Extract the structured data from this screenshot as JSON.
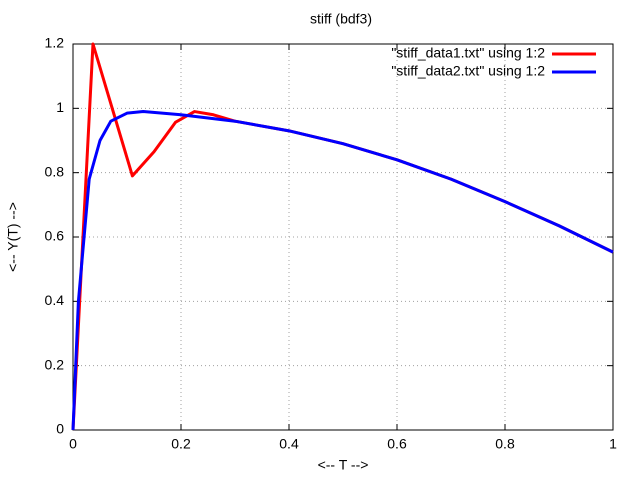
{
  "chart_data": {
    "type": "line",
    "title": "stiff (bdf3)",
    "x_label": "<-- T -->",
    "y_label": "<-- Y(T) -->",
    "series": [
      {
        "name": "\"stiff_data1.txt\" using 1:2",
        "color": "#ff0000",
        "x": [
          0,
          0.037,
          0.11,
          0.15,
          0.19,
          0.225,
          0.26,
          0.3,
          0.4,
          0.5,
          0.6,
          0.7,
          0.8,
          0.9,
          1
        ],
        "values": [
          0,
          1.2,
          0.79,
          0.865,
          0.957,
          0.99,
          0.98,
          0.96,
          0.93,
          0.89,
          0.84,
          0.78,
          0.71,
          0.635,
          0.553
        ]
      },
      {
        "name": "\"stiff_data2.txt\" using 1:2",
        "color": "#0000ff",
        "x": [
          0,
          0.01,
          0.03,
          0.05,
          0.07,
          0.1,
          0.13,
          0.2,
          0.3,
          0.4,
          0.5,
          0.6,
          0.7,
          0.8,
          0.9,
          1
        ],
        "values": [
          0,
          0.4,
          0.78,
          0.9,
          0.96,
          0.985,
          0.99,
          0.98,
          0.96,
          0.93,
          0.89,
          0.84,
          0.78,
          0.71,
          0.635,
          0.553
        ]
      }
    ],
    "xlim": [
      0,
      1
    ],
    "xticks": [
      0,
      0.2,
      0.4,
      0.6,
      0.8,
      1
    ],
    "ylim": [
      0,
      1.2
    ],
    "yticks": [
      0,
      0.2,
      0.4,
      0.6,
      0.8,
      1,
      1.2
    ],
    "grid": true,
    "legend": "top-right"
  }
}
